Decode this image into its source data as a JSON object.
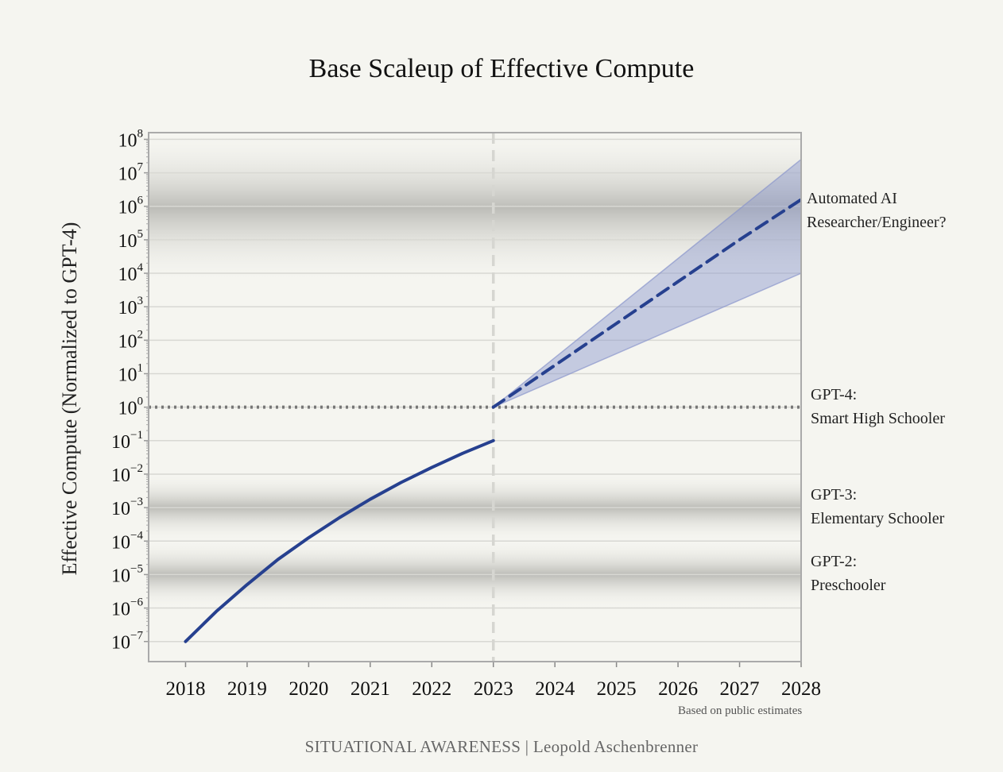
{
  "chart_data": {
    "type": "line",
    "title": "Base Scaleup of Effective Compute",
    "ylabel": "Effective Compute (Normalized to GPT-4)",
    "yscale": "log",
    "xlim": [
      2017.4,
      2028
    ],
    "ylim": [
      -7.6,
      8.2
    ],
    "x_ticks": [
      "2018",
      "2019",
      "2020",
      "2021",
      "2022",
      "2023",
      "2024",
      "2025",
      "2026",
      "2027",
      "2028"
    ],
    "y_ticks": [
      {
        "base": "10",
        "exp": "8"
      },
      {
        "base": "10",
        "exp": "7"
      },
      {
        "base": "10",
        "exp": "6"
      },
      {
        "base": "10",
        "exp": "5"
      },
      {
        "base": "10",
        "exp": "4"
      },
      {
        "base": "10",
        "exp": "3"
      },
      {
        "base": "10",
        "exp": "2"
      },
      {
        "base": "10",
        "exp": "1"
      },
      {
        "base": "10",
        "exp": "0"
      },
      {
        "base": "10",
        "exp": "−1"
      },
      {
        "base": "10",
        "exp": "−2"
      },
      {
        "base": "10",
        "exp": "−3"
      },
      {
        "base": "10",
        "exp": "−4"
      },
      {
        "base": "10",
        "exp": "−5"
      },
      {
        "base": "10",
        "exp": "−6"
      },
      {
        "base": "10",
        "exp": "−7"
      }
    ],
    "grid": true,
    "series": [
      {
        "style": "solid",
        "color": "#26408f",
        "x": [
          2018,
          2018.5,
          2019,
          2019.5,
          2020,
          2020.5,
          2021,
          2021.5,
          2022,
          2022.5,
          2023
        ],
        "log10_y": [
          -7.0,
          -6.1,
          -5.3,
          -4.55,
          -3.9,
          -3.3,
          -2.75,
          -2.25,
          -1.8,
          -1.38,
          -1.0
        ]
      },
      {
        "style": "dashed",
        "color": "#26408f",
        "x": [
          2023,
          2024,
          2025,
          2026,
          2027,
          2028
        ],
        "log10_y": [
          0,
          1.25,
          2.5,
          3.75,
          5.0,
          6.2
        ]
      }
    ],
    "band": {
      "color": "#8a96cc",
      "x": [
        2023,
        2028
      ],
      "upper_log10": [
        0,
        7.4
      ],
      "lower_log10": [
        0,
        4.0
      ]
    },
    "shaded_regions_log10": [
      {
        "center": 6.0,
        "halfwidth": 2.3
      },
      {
        "center": -3.0,
        "halfwidth": 1.0
      },
      {
        "center": -5.0,
        "halfwidth": 1.0
      }
    ],
    "reference_lines": [
      {
        "axis": "y",
        "log10": 0,
        "style": "dotted",
        "color": "#777777"
      },
      {
        "axis": "x",
        "value": 2023,
        "style": "dashed",
        "color": "#d0d0cc"
      }
    ],
    "annotations": [
      {
        "lines": [
          "Automated AI",
          "Researcher/Engineer?"
        ],
        "log10": 5.85
      },
      {
        "lines": [
          "GPT-4:",
          "Smart High Schooler"
        ],
        "log10": 0
      },
      {
        "lines": [
          "GPT-3:",
          "Elementary Schooler"
        ],
        "log10": -3.0
      },
      {
        "lines": [
          "GPT-2:",
          "Preschooler"
        ],
        "log10": -5.0
      }
    ],
    "note": "Based on public estimates"
  },
  "footer": "SITUATIONAL AWARENESS | Leopold Aschenbrenner"
}
